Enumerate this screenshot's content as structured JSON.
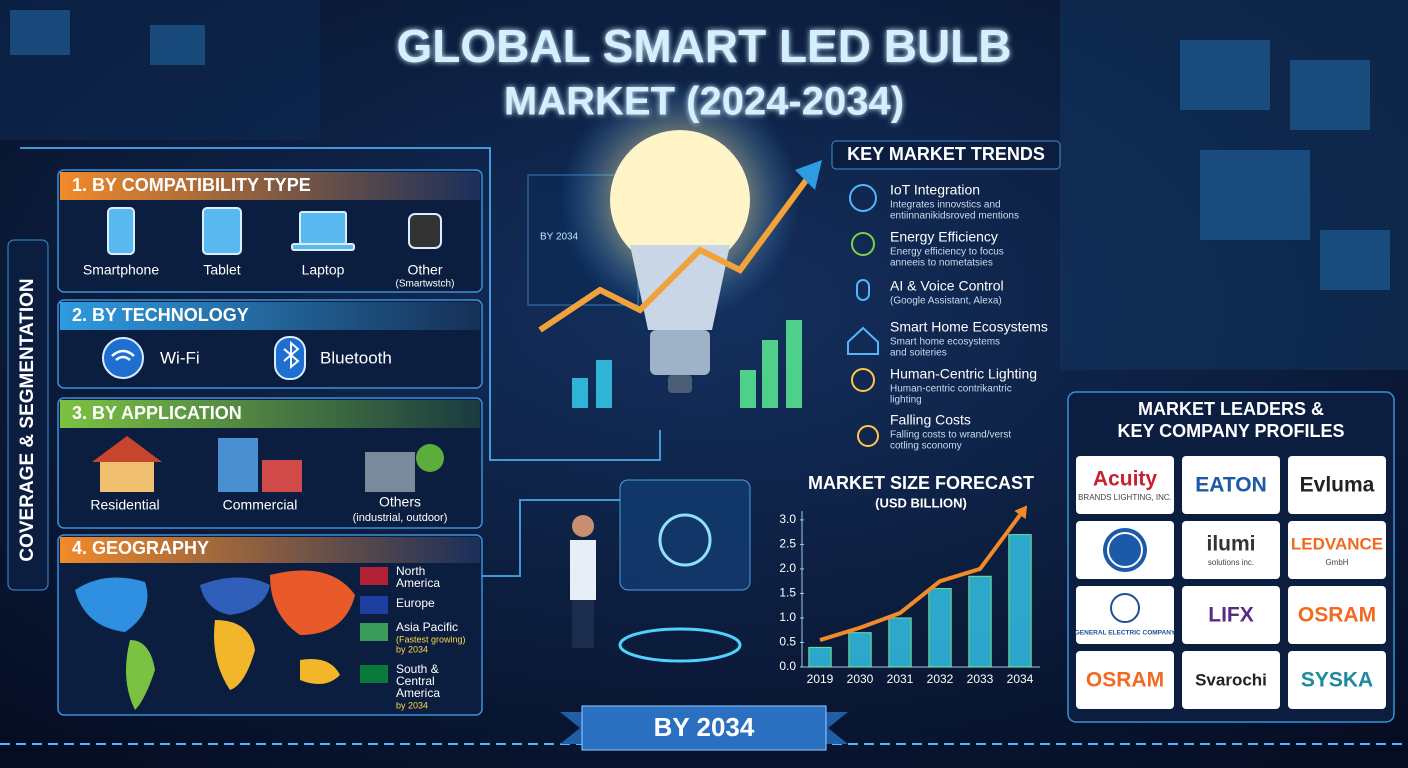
{
  "header": {
    "title_line1": "GLOBAL SMART LED BULB",
    "title_line2": "MARKET (2024-2034)"
  },
  "side_label": "COVERAGE & SEGMENTATION",
  "segments": [
    {
      "title": "1. BY COMPATIBILITY TYPE",
      "items": [
        {
          "label": "Smartphone"
        },
        {
          "label": "Tablet"
        },
        {
          "label": "Laptop"
        },
        {
          "label": "Other",
          "note": "(Smartwstch)"
        }
      ]
    },
    {
      "title": "2. BY TECHNOLOGY",
      "items": [
        {
          "label": "Wi-Fi"
        },
        {
          "label": "Bluetooth"
        }
      ]
    },
    {
      "title": "3. BY APPLICATION",
      "items": [
        {
          "label": "Residential"
        },
        {
          "label": "Commercial"
        },
        {
          "label": "Others",
          "note": "(industrial, outdoor)"
        }
      ]
    },
    {
      "title": "4. GEOGRAPHY",
      "items": [
        {
          "lines": [
            "North",
            "America"
          ]
        },
        {
          "lines": [
            "Europe"
          ]
        },
        {
          "lines": [
            "Asia Pacific"
          ],
          "notes": [
            "(Fastest growing)",
            "by 2034"
          ]
        },
        {
          "lines": [
            "South &",
            "Central",
            "America"
          ],
          "notes": [
            "by 2034"
          ]
        }
      ]
    }
  ],
  "bulb_label": "BY 2034",
  "trends": {
    "title": "KEY MARKET TRENDS",
    "items": [
      {
        "label": "IoT Integration",
        "desc": [
          "Integrates innovstics and",
          "entiinnanikidsroved mentions"
        ]
      },
      {
        "label": "Energy Efficiency",
        "desc": [
          "Energy efficiency to focus",
          "anneeis to nometatsies"
        ]
      },
      {
        "label": "AI & Voice Control",
        "desc": [
          "(Google Assistant, Alexa)"
        ]
      },
      {
        "label": "Smart Home Ecosystems",
        "desc": [
          "Smart home ecosystems",
          "and soiteries"
        ]
      },
      {
        "label": "Human-Centric Lighting",
        "desc": [
          "Human-centric contrikantric",
          "lighting"
        ]
      },
      {
        "label": "Falling Costs",
        "desc": [
          "Falling costs to wrand/verst",
          "cotling sconomy"
        ]
      }
    ]
  },
  "chart_data": {
    "type": "bar",
    "title": "MARKET SIZE FORECAST",
    "subtitle": "(USD BILLION)",
    "categories": [
      "2019",
      "2030",
      "2031",
      "2032",
      "2033",
      "2034"
    ],
    "series": [
      {
        "type": "bar",
        "color": "#2fb4d8",
        "values": [
          0.4,
          0.7,
          1.0,
          1.6,
          1.85,
          2.7
        ]
      },
      {
        "type": "line",
        "color": "#f28a2a",
        "values": [
          0.55,
          0.8,
          1.1,
          1.75,
          2.0,
          3.1
        ]
      }
    ],
    "ylim": [
      0,
      3.1
    ],
    "yticks": [
      {
        "value": 0,
        "label": "0.0"
      },
      0.5,
      {
        "value": 1,
        "label": "1.0"
      },
      1.5,
      {
        "value": 2,
        "label": "2.0"
      },
      2.5,
      {
        "value": 3,
        "label": "3.0"
      }
    ]
  },
  "leaders": {
    "title_lines": [
      "MARKET LEADERS &",
      "KEY COMPANY PROFILES"
    ],
    "companies": [
      {
        "name": "Acuity",
        "sub": "BRANDS LIGHTING, INC.",
        "color": "#c8202f"
      },
      {
        "name": "EATON",
        "color": "#1a5aa8"
      },
      {
        "name": "Evluma",
        "color": "#222222"
      },
      {
        "name": "ilumi",
        "sub": "solutions inc.",
        "color": "#333333"
      },
      {
        "name": "LEDVANCE",
        "sub": "GmbH",
        "color": "#f26a21"
      },
      {
        "name": "GENERAL ELECTRIC COMPANY",
        "color": "#1a4f9c"
      },
      {
        "name": "LIFX",
        "color": "#5b2a86"
      },
      {
        "name": "OSRAM",
        "color": "#f26a21"
      },
      {
        "name": "OSRAM",
        "color": "#f26a21"
      },
      {
        "name": "Svarochi",
        "color": "#222222"
      },
      {
        "name": "SYSKA",
        "color": "#1a8a9c"
      }
    ]
  },
  "footer": "BY 2034"
}
